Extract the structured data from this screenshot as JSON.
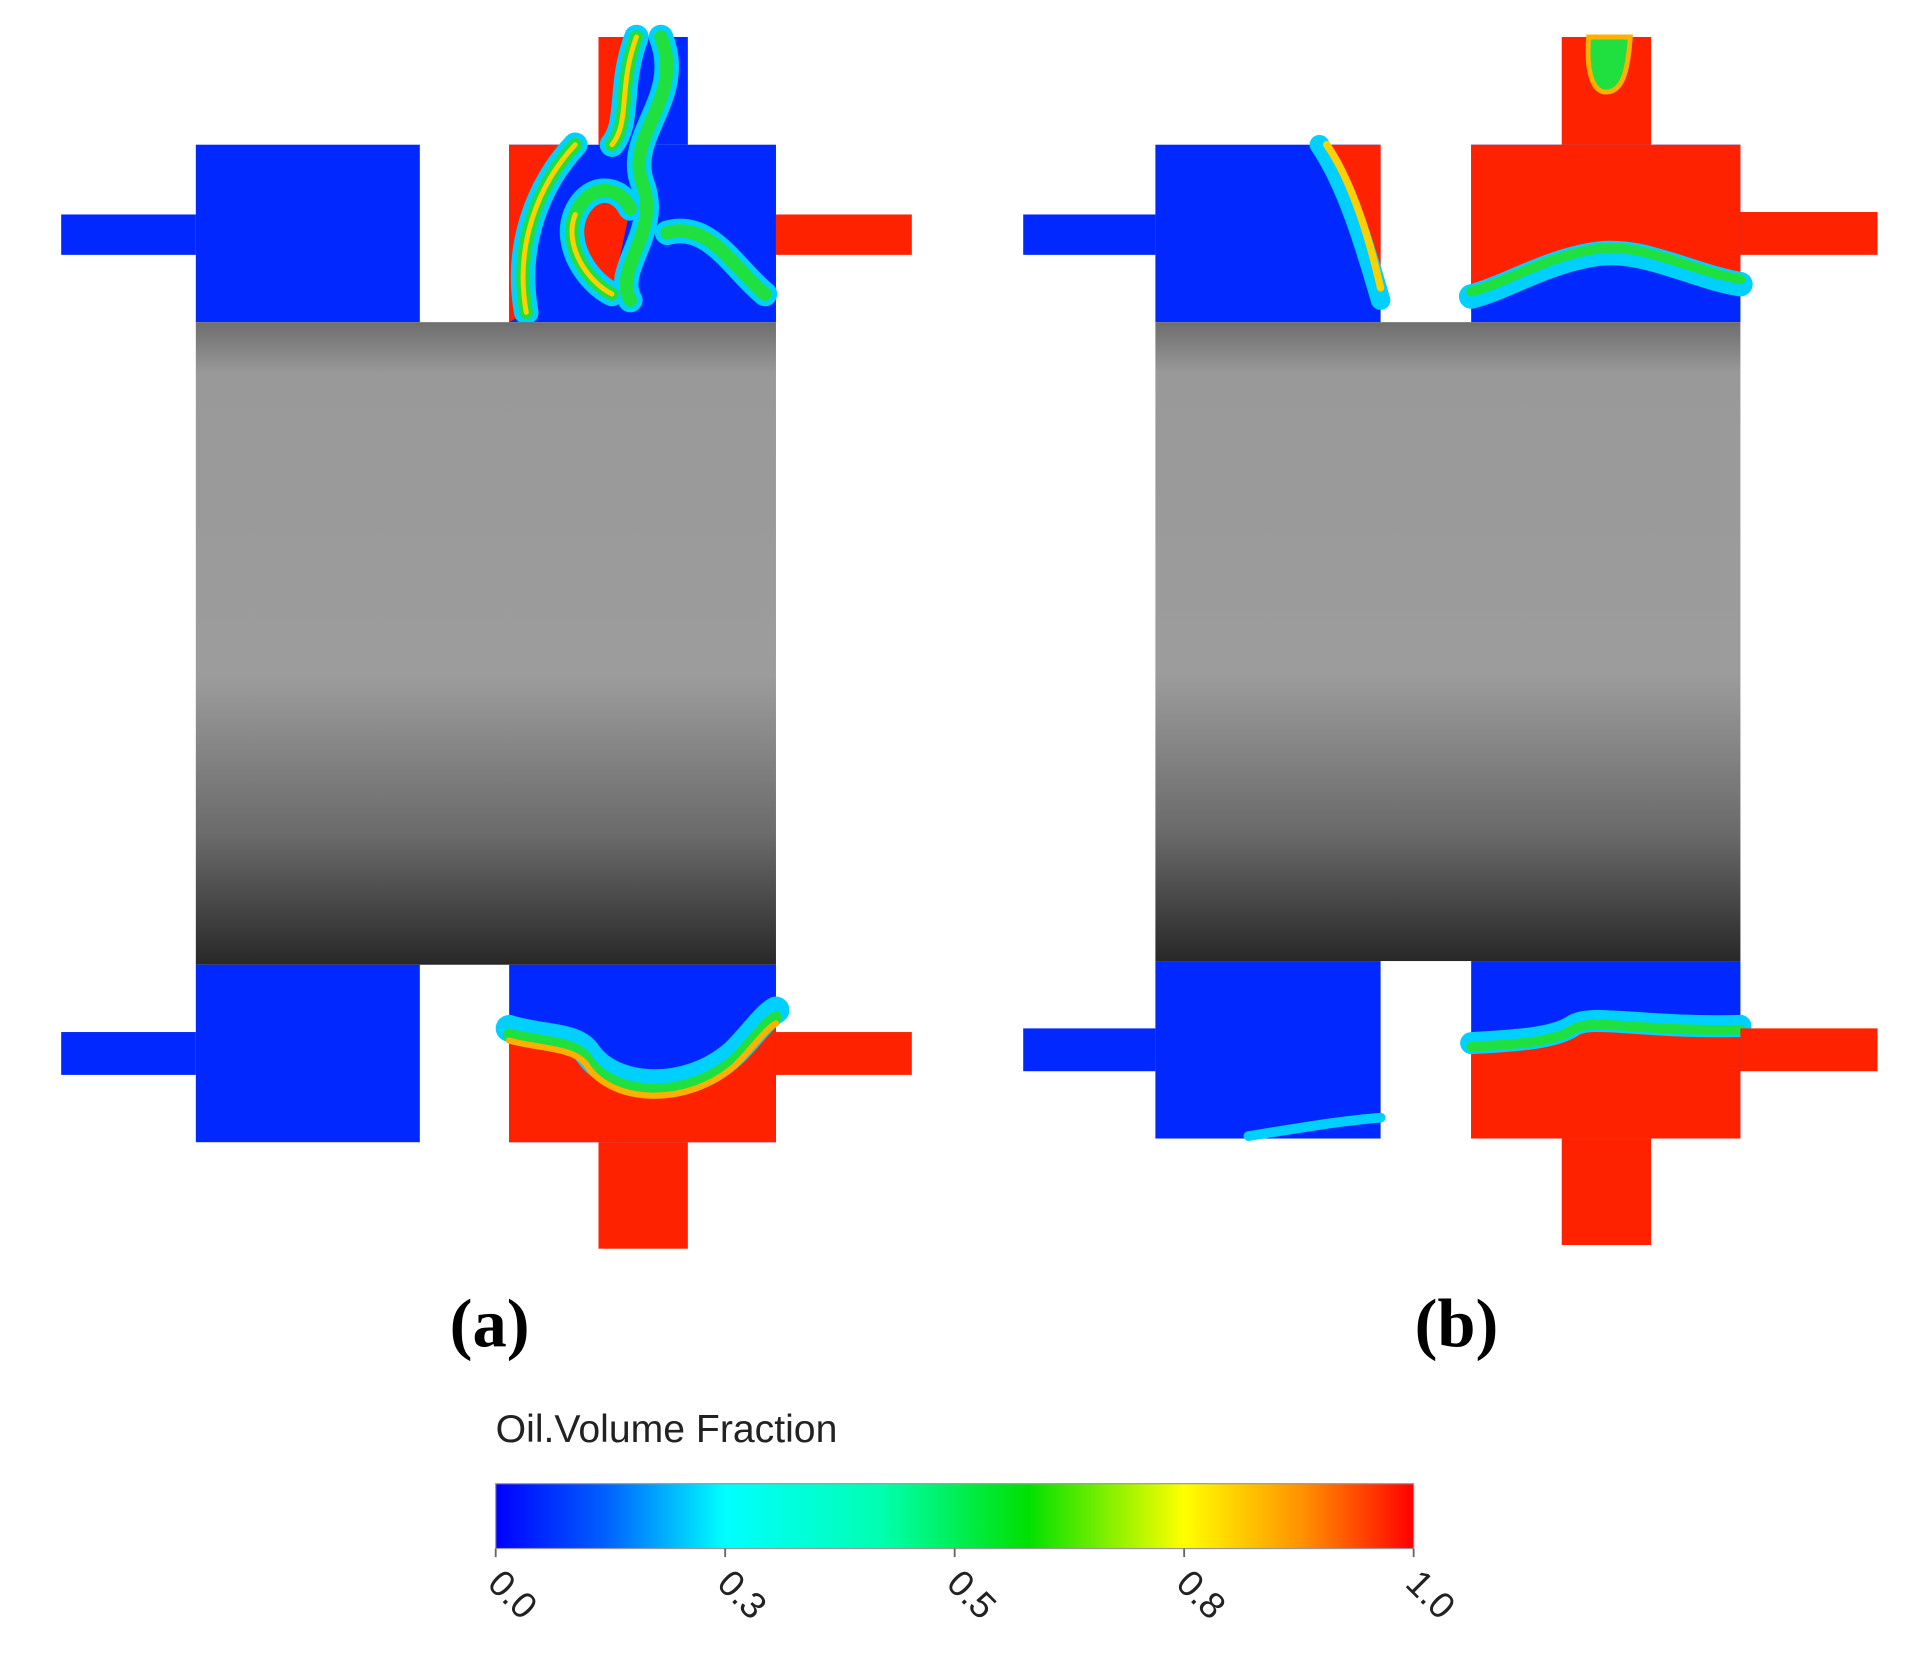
{
  "panels": [
    {
      "label": "(a)"
    },
    {
      "label": "(b)"
    }
  ],
  "colorbar": {
    "title": "Oil.Volume Fraction",
    "lim": [
      0,
      1
    ],
    "ticks": [
      {
        "value": 0,
        "label": "0.0"
      },
      {
        "value": 0.25,
        "label": "0.3"
      },
      {
        "value": 0.5,
        "label": "0.5"
      },
      {
        "value": 0.75,
        "label": "0.8"
      },
      {
        "value": 1,
        "label": "1.0"
      }
    ]
  }
}
